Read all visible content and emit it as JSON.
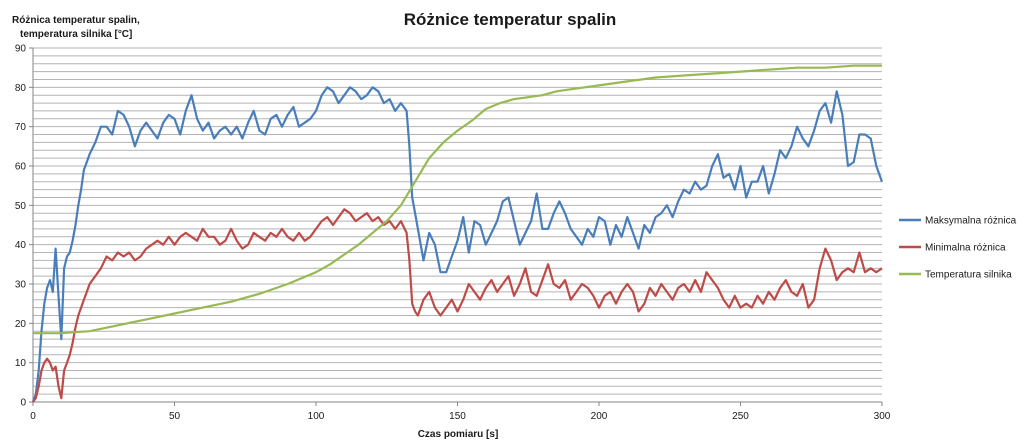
{
  "chart_data": {
    "type": "line",
    "title": "Różnice temperatur spalin",
    "ylabel_lines": [
      "Różnica temperatur spalin,",
      "temperatura silnika [°C]"
    ],
    "xlabel": "Czas pomiaru [s]",
    "xlim": [
      0,
      300
    ],
    "ylim": [
      0,
      90
    ],
    "x_ticks": [
      0,
      50,
      100,
      150,
      200,
      250,
      300
    ],
    "y_ticks": [
      0,
      10,
      20,
      30,
      40,
      50,
      60,
      70,
      80,
      90
    ],
    "grid_y_step": 2,
    "legend_position": "right",
    "series": [
      {
        "name": "Maksymalna różnica",
        "color": "#4a7ebb",
        "x": [
          0,
          1,
          2,
          3,
          4,
          5,
          6,
          7,
          8,
          9,
          10,
          11,
          12,
          13,
          14,
          15,
          16,
          17,
          18,
          19,
          20,
          22,
          24,
          26,
          28,
          30,
          32,
          34,
          36,
          38,
          40,
          42,
          44,
          46,
          48,
          50,
          52,
          54,
          56,
          58,
          60,
          62,
          64,
          66,
          68,
          70,
          72,
          74,
          76,
          78,
          80,
          82,
          84,
          86,
          88,
          90,
          92,
          94,
          96,
          98,
          100,
          102,
          104,
          106,
          108,
          110,
          112,
          114,
          116,
          118,
          120,
          122,
          124,
          126,
          128,
          130,
          132,
          133,
          134,
          135,
          136,
          138,
          140,
          142,
          144,
          146,
          148,
          150,
          152,
          154,
          156,
          158,
          160,
          162,
          164,
          166,
          168,
          170,
          172,
          174,
          176,
          178,
          180,
          182,
          184,
          186,
          188,
          190,
          192,
          194,
          196,
          198,
          200,
          202,
          204,
          206,
          208,
          210,
          212,
          214,
          216,
          218,
          220,
          222,
          224,
          226,
          228,
          230,
          232,
          234,
          236,
          238,
          240,
          242,
          244,
          246,
          248,
          250,
          252,
          254,
          256,
          258,
          260,
          262,
          264,
          266,
          268,
          270,
          272,
          274,
          276,
          278,
          280,
          282,
          284,
          286,
          288,
          290,
          292,
          294,
          296,
          298,
          300
        ],
        "y": [
          0,
          2,
          8,
          18,
          25,
          29,
          31,
          28,
          39,
          27,
          16,
          34,
          37,
          38,
          41,
          45,
          50,
          54,
          59,
          61,
          63,
          66,
          70,
          70,
          68,
          74,
          73,
          70,
          65,
          69,
          71,
          69,
          67,
          71,
          73,
          72,
          68,
          74,
          78,
          72,
          69,
          71,
          67,
          69,
          70,
          68,
          70,
          67,
          71,
          74,
          69,
          68,
          72,
          73,
          70,
          73,
          75,
          70,
          71,
          72,
          74,
          78,
          80,
          79,
          76,
          78,
          80,
          79,
          77,
          78,
          80,
          79,
          76,
          77,
          74,
          76,
          74,
          65,
          52,
          48,
          44,
          36,
          43,
          40,
          33,
          33,
          37,
          41,
          47,
          38,
          46,
          45,
          40,
          43,
          46,
          51,
          52,
          46,
          40,
          43,
          46,
          53,
          44,
          44,
          48,
          51,
          48,
          44,
          42,
          40,
          44,
          42,
          47,
          46,
          40,
          45,
          42,
          47,
          43,
          39,
          45,
          43,
          47,
          48,
          50,
          47,
          51,
          54,
          53,
          56,
          54,
          55,
          60,
          63,
          57,
          58,
          54,
          60,
          52,
          56,
          56,
          60,
          53,
          58,
          64,
          62,
          65,
          70,
          67,
          65,
          69,
          74,
          76,
          71,
          79,
          73,
          60,
          61,
          68,
          68,
          67,
          60,
          56
        ]
      },
      {
        "name": "Minimalna różnica",
        "color": "#be4b48",
        "x": [
          0,
          1,
          2,
          3,
          4,
          5,
          6,
          7,
          8,
          9,
          10,
          11,
          12,
          13,
          14,
          15,
          16,
          17,
          18,
          19,
          20,
          22,
          24,
          26,
          28,
          30,
          32,
          34,
          36,
          38,
          40,
          42,
          44,
          46,
          48,
          50,
          52,
          54,
          56,
          58,
          60,
          62,
          64,
          66,
          68,
          70,
          72,
          74,
          76,
          78,
          80,
          82,
          84,
          86,
          88,
          90,
          92,
          94,
          96,
          98,
          100,
          102,
          104,
          106,
          108,
          110,
          112,
          114,
          116,
          118,
          120,
          122,
          124,
          126,
          128,
          130,
          132,
          133,
          134,
          135,
          136,
          138,
          140,
          142,
          144,
          146,
          148,
          150,
          152,
          154,
          156,
          158,
          160,
          162,
          164,
          166,
          168,
          170,
          172,
          174,
          176,
          178,
          180,
          182,
          184,
          186,
          188,
          190,
          192,
          194,
          196,
          198,
          200,
          202,
          204,
          206,
          208,
          210,
          212,
          214,
          216,
          218,
          220,
          222,
          224,
          226,
          228,
          230,
          232,
          234,
          236,
          238,
          240,
          242,
          244,
          246,
          248,
          250,
          252,
          254,
          256,
          258,
          260,
          262,
          264,
          266,
          268,
          270,
          272,
          274,
          276,
          278,
          280,
          282,
          284,
          286,
          288,
          290,
          292,
          294,
          296,
          298,
          300
        ],
        "y": [
          0,
          1,
          4,
          8,
          10,
          11,
          10,
          8,
          9,
          4,
          1,
          8,
          10,
          12,
          15,
          19,
          22,
          24,
          26,
          28,
          30,
          32,
          34,
          37,
          36,
          38,
          37,
          38,
          36,
          37,
          39,
          40,
          41,
          40,
          42,
          40,
          42,
          43,
          42,
          41,
          44,
          42,
          42,
          40,
          41,
          44,
          41,
          39,
          40,
          43,
          42,
          41,
          43,
          42,
          44,
          42,
          41,
          43,
          41,
          42,
          44,
          46,
          47,
          45,
          47,
          49,
          48,
          46,
          47,
          48,
          46,
          47,
          45,
          46,
          44,
          46,
          43,
          36,
          25,
          23,
          22,
          26,
          28,
          24,
          22,
          24,
          26,
          23,
          26,
          30,
          28,
          26,
          29,
          31,
          28,
          30,
          32,
          27,
          30,
          34,
          28,
          27,
          31,
          35,
          30,
          29,
          31,
          26,
          28,
          30,
          29,
          27,
          24,
          27,
          28,
          25,
          28,
          30,
          28,
          23,
          25,
          29,
          27,
          30,
          28,
          26,
          29,
          30,
          28,
          31,
          28,
          33,
          31,
          29,
          26,
          24,
          27,
          24,
          25,
          24,
          27,
          25,
          28,
          26,
          29,
          31,
          28,
          27,
          30,
          24,
          26,
          34,
          39,
          36,
          31,
          33,
          34,
          33,
          38,
          33,
          34,
          33,
          34
        ]
      },
      {
        "name": "Temperatura silnika",
        "color": "#98b954",
        "x": [
          0,
          10,
          20,
          30,
          40,
          50,
          60,
          70,
          80,
          90,
          100,
          105,
          110,
          115,
          120,
          125,
          130,
          135,
          140,
          145,
          150,
          155,
          160,
          165,
          170,
          175,
          180,
          185,
          190,
          195,
          200,
          210,
          220,
          230,
          240,
          250,
          260,
          270,
          280,
          290,
          300
        ],
        "y": [
          17.5,
          17.5,
          18,
          19.5,
          21,
          22.5,
          24,
          25.5,
          27.5,
          30,
          33,
          35,
          37.5,
          40,
          43,
          46,
          50,
          56,
          62,
          66,
          69,
          71.5,
          74.5,
          76,
          77,
          77.5,
          78,
          79,
          79.5,
          80,
          80.5,
          81.5,
          82.5,
          83,
          83.5,
          84,
          84.5,
          85,
          85,
          85.5,
          85.5
        ]
      }
    ]
  }
}
